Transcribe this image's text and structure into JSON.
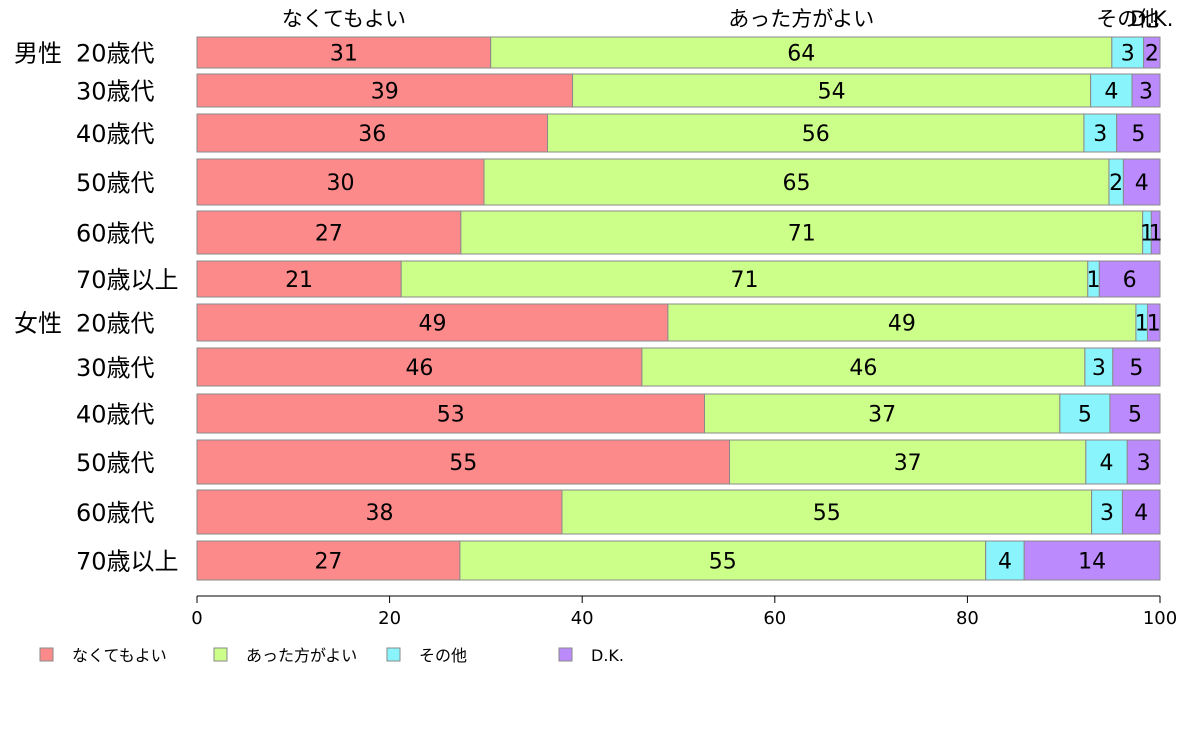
{
  "chart_data": {
    "type": "bar",
    "orientation": "horizontal",
    "stacked": true,
    "categories": [
      {
        "group": "男性",
        "label": "20歳代"
      },
      {
        "group": "",
        "label": "30歳代"
      },
      {
        "group": "",
        "label": "40歳代"
      },
      {
        "group": "",
        "label": "50歳代"
      },
      {
        "group": "",
        "label": "60歳代"
      },
      {
        "group": "",
        "label": "70歳以上"
      },
      {
        "group": "女性",
        "label": "20歳代"
      },
      {
        "group": "",
        "label": "30歳代"
      },
      {
        "group": "",
        "label": "40歳代"
      },
      {
        "group": "",
        "label": "50歳代"
      },
      {
        "group": "",
        "label": "60歳代"
      },
      {
        "group": "",
        "label": "70歳以上"
      }
    ],
    "series": [
      {
        "name": "なくてもよい",
        "color": "#fc8a8a",
        "values": [
          30.5,
          39.0,
          36.4,
          29.8,
          27.4,
          21.2,
          48.9,
          46.2,
          52.7,
          55.3,
          37.9,
          27.3
        ]
      },
      {
        "name": "あった方がよい",
        "color": "#ccff8a",
        "values": [
          64.5,
          53.8,
          55.7,
          64.9,
          70.8,
          71.3,
          48.6,
          46.0,
          36.9,
          37.0,
          55.0,
          54.6
        ]
      },
      {
        "name": "その他",
        "color": "#8af4fc",
        "values": [
          3.3,
          4.3,
          3.4,
          1.5,
          0.9,
          1.2,
          1.2,
          2.9,
          5.2,
          4.3,
          3.2,
          4.0
        ]
      },
      {
        "name": "D.K.",
        "color": "#bb8afc",
        "values": [
          1.7,
          2.9,
          4.5,
          3.8,
          0.9,
          6.3,
          1.3,
          4.9,
          5.2,
          3.4,
          3.9,
          14.1
        ]
      }
    ],
    "data_labels": [
      [
        31,
        64,
        3,
        2
      ],
      [
        39,
        54,
        4,
        3
      ],
      [
        36,
        56,
        3,
        5
      ],
      [
        30,
        65,
        2,
        4
      ],
      [
        27,
        71,
        1,
        1
      ],
      [
        21,
        71,
        1,
        6
      ],
      [
        49,
        49,
        1,
        1
      ],
      [
        46,
        46,
        3,
        5
      ],
      [
        53,
        37,
        5,
        5
      ],
      [
        55,
        37,
        4,
        3
      ],
      [
        38,
        55,
        3,
        4
      ],
      [
        27,
        55,
        4,
        14
      ]
    ],
    "top_labels": [
      "なくてもよい",
      "あった方がよい",
      "その他",
      "D.K."
    ],
    "xlim": [
      0,
      100
    ],
    "xticks": [
      0,
      20,
      40,
      60,
      80,
      100
    ],
    "grid": false,
    "legend": {
      "position": "bottom-left",
      "entries": [
        "なくてもよい",
        "あった方がよい",
        "その他",
        "D.K."
      ]
    }
  }
}
